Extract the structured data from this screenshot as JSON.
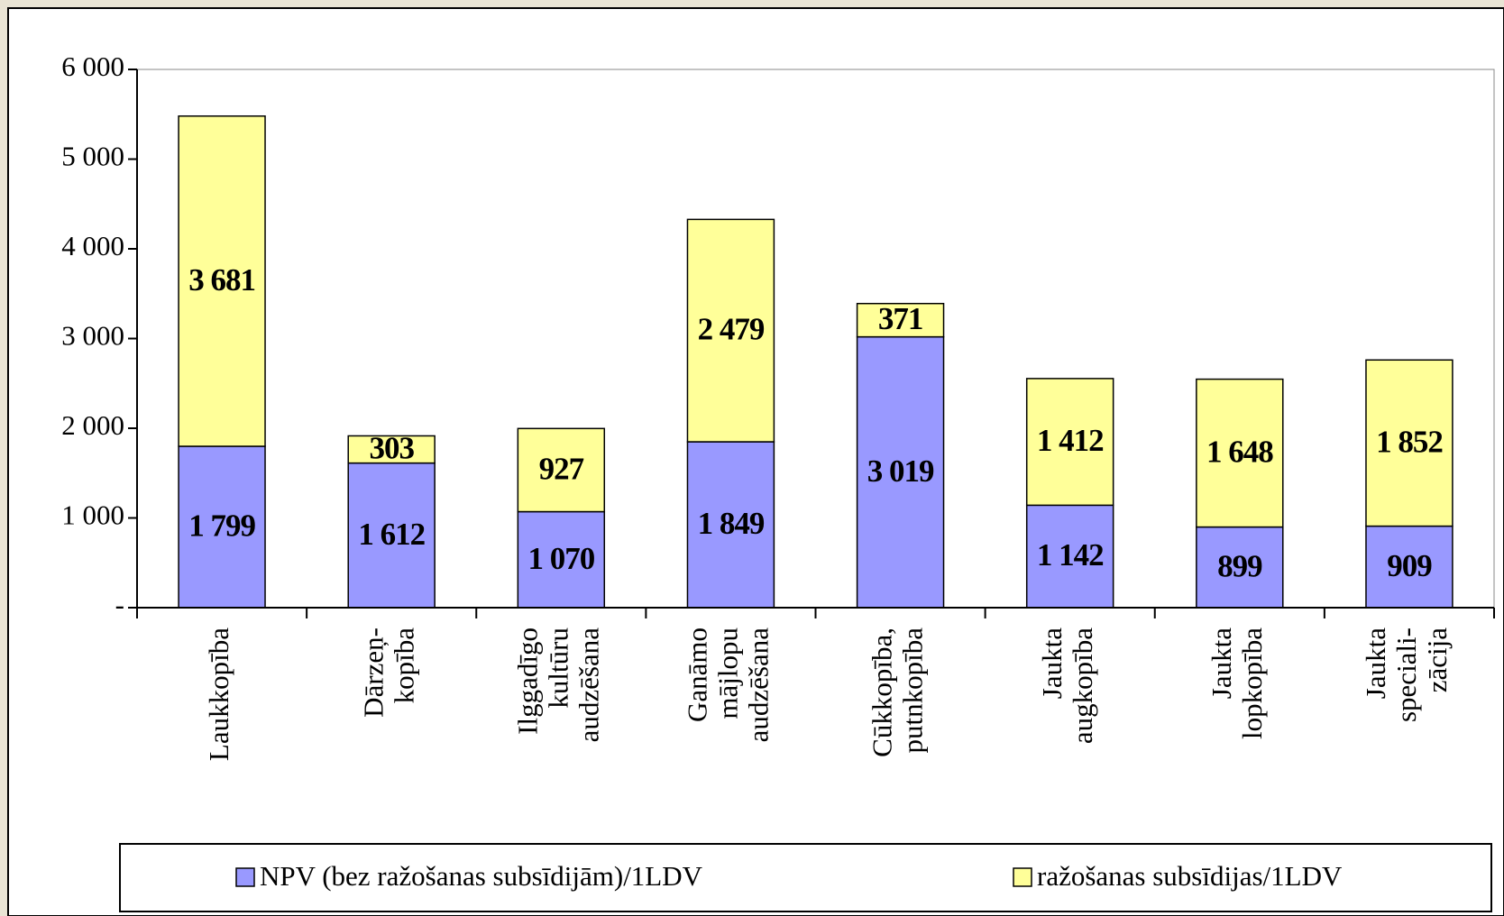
{
  "chart_data": {
    "type": "stacked_bar",
    "categories": [
      [
        "Laukkopība"
      ],
      [
        "Dārzeņ-",
        "kopība"
      ],
      [
        "Ilggadīgo",
        "kultūru",
        "audzēšana"
      ],
      [
        "Ganāmo",
        "mājlopu",
        "audzēšana"
      ],
      [
        "Cūkkopība,",
        "putnkopība"
      ],
      [
        "Jaukta",
        "augkopība"
      ],
      [
        "Jaukta",
        "lopkopība"
      ],
      [
        "Jaukta",
        "speciali-",
        "zācija"
      ]
    ],
    "series": [
      {
        "name": "NPV (bez ražošanas subsīdijām)/1LDV",
        "color": "#9999ff",
        "values": [
          1799,
          1612,
          1070,
          1849,
          3019,
          1142,
          899,
          909
        ],
        "value_labels": [
          "1 799",
          "1 612",
          "1 070",
          "1 849",
          "3 019",
          "1 142",
          "899",
          "909"
        ]
      },
      {
        "name": "ražošanas subsīdijas/1LDV",
        "color": "#ffff99",
        "values": [
          3681,
          303,
          927,
          2479,
          371,
          1412,
          1648,
          1852
        ],
        "value_labels": [
          "3 681",
          "303",
          "927",
          "2 479",
          "371",
          "1 412",
          "1 648",
          "1 852"
        ]
      }
    ],
    "ylim": [
      0,
      6000
    ],
    "yticks": [
      {
        "value": 0,
        "label": "-"
      },
      {
        "value": 1000,
        "label": "1 000"
      },
      {
        "value": 2000,
        "label": "2 000"
      },
      {
        "value": 3000,
        "label": "3 000"
      },
      {
        "value": 4000,
        "label": "4 000"
      },
      {
        "value": 5000,
        "label": "5 000"
      },
      {
        "value": 6000,
        "label": "6 000"
      }
    ],
    "legend": "bottom"
  }
}
